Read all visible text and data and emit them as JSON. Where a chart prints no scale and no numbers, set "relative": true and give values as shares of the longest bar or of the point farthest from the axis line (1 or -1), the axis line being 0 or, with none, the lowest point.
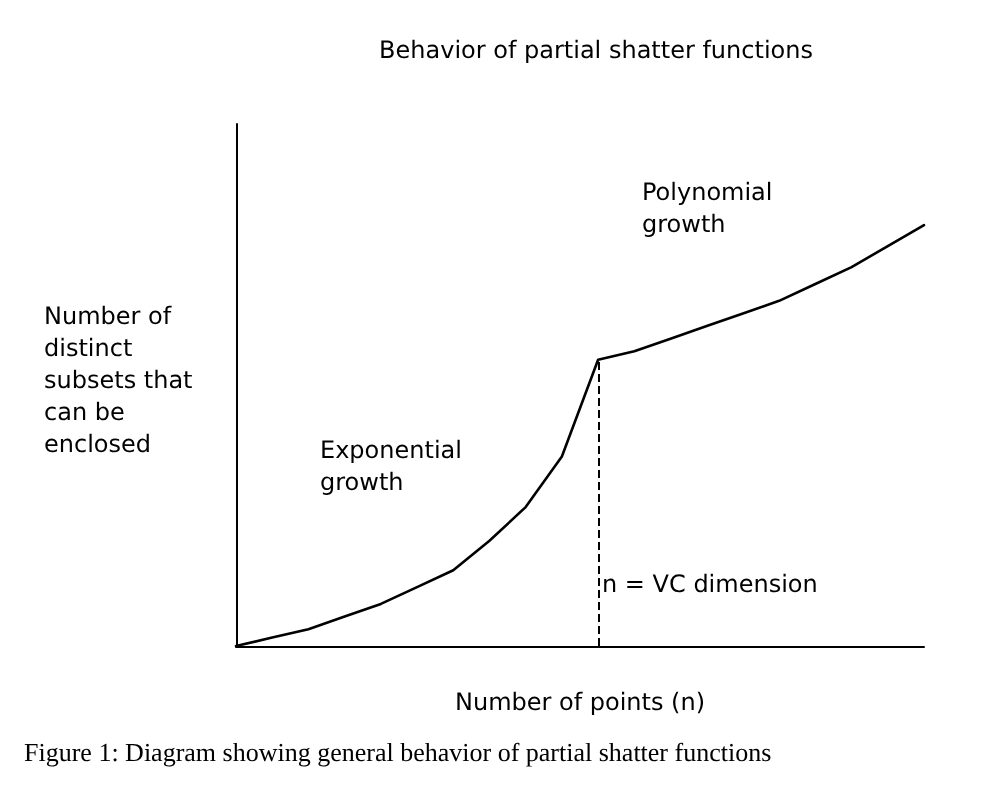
{
  "chart_data": {
    "type": "line",
    "title": "Behavior of partial shatter functions",
    "xlabel": "Number of points (n)",
    "ylabel": "Number of\ndistinct\nsubsets that\ncan be\nenclosed",
    "relative": true,
    "categories": [
      null,
      null,
      null,
      null,
      null,
      null,
      null,
      null,
      null,
      null,
      null,
      null,
      null,
      null,
      null,
      null,
      null,
      null,
      null,
      null
    ],
    "series": [
      {
        "color": "#000000",
        "values": [
          0,
          0.02,
          0.04,
          0.07,
          0.1,
          0.14,
          0.18,
          0.25,
          0.33,
          0.45,
          0.68,
          0.7,
          0.73,
          0.76,
          0.79,
          0.82,
          0.86,
          0.9,
          0.95,
          1
        ]
      }
    ],
    "marker": "none",
    "line_style": "solid",
    "grid": false,
    "annotations": [
      "Exponential\ngrowth",
      "Polynomial\ngrowth",
      "Figure 1: Diagram showing general behavior of partial shatter functions",
      "n = VC dimension"
    ]
  }
}
